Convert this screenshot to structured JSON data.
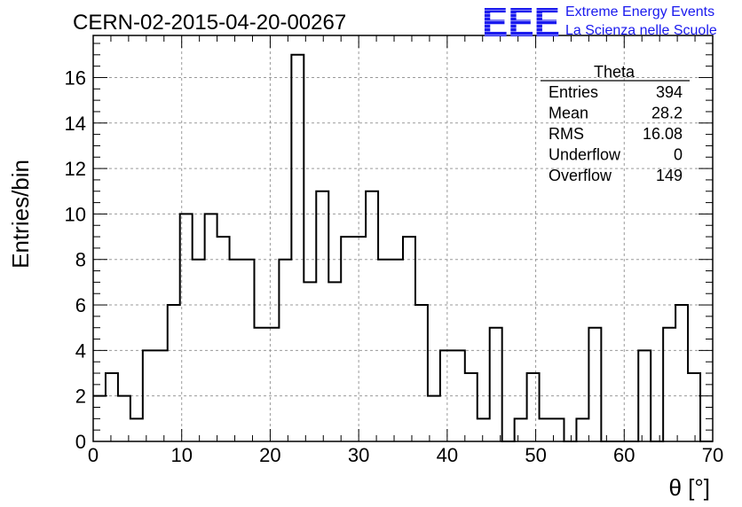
{
  "chart_data": {
    "type": "histogram",
    "title": "CERN-02-2015-04-20-00267",
    "xlabel": "θ [°]",
    "ylabel": "Entries/bin",
    "xlim": [
      0,
      70
    ],
    "ylim": [
      0,
      17.85
    ],
    "bin_width": 1.4,
    "x_ticks": [
      0,
      10,
      20,
      30,
      40,
      50,
      60,
      70
    ],
    "y_ticks": [
      0,
      2,
      4,
      6,
      8,
      10,
      12,
      14,
      16
    ],
    "grid": true,
    "values": [
      2,
      3,
      2,
      1,
      4,
      4,
      6,
      10,
      8,
      10,
      9,
      8,
      8,
      5,
      5,
      8,
      17,
      7,
      11,
      7,
      9,
      9,
      11,
      8,
      8,
      9,
      6,
      2,
      4,
      4,
      3,
      1,
      5,
      0,
      1,
      3,
      1,
      1,
      0,
      1,
      5,
      0,
      0,
      0,
      4,
      0,
      5,
      6,
      3,
      0
    ],
    "line_color": "#000000",
    "stats": {
      "title": "Theta",
      "rows": [
        {
          "label": "Entries",
          "value": "394"
        },
        {
          "label": "Mean",
          "value": "28.2"
        },
        {
          "label": "RMS",
          "value": "16.08"
        },
        {
          "label": "Underflow",
          "value": "0"
        },
        {
          "label": "Overflow",
          "value": "149"
        }
      ]
    }
  },
  "logo": {
    "mark": "EEE",
    "line1": "Extreme Energy Events",
    "line2": "La Scienza nelle Scuole",
    "color": "#1a1aee"
  }
}
